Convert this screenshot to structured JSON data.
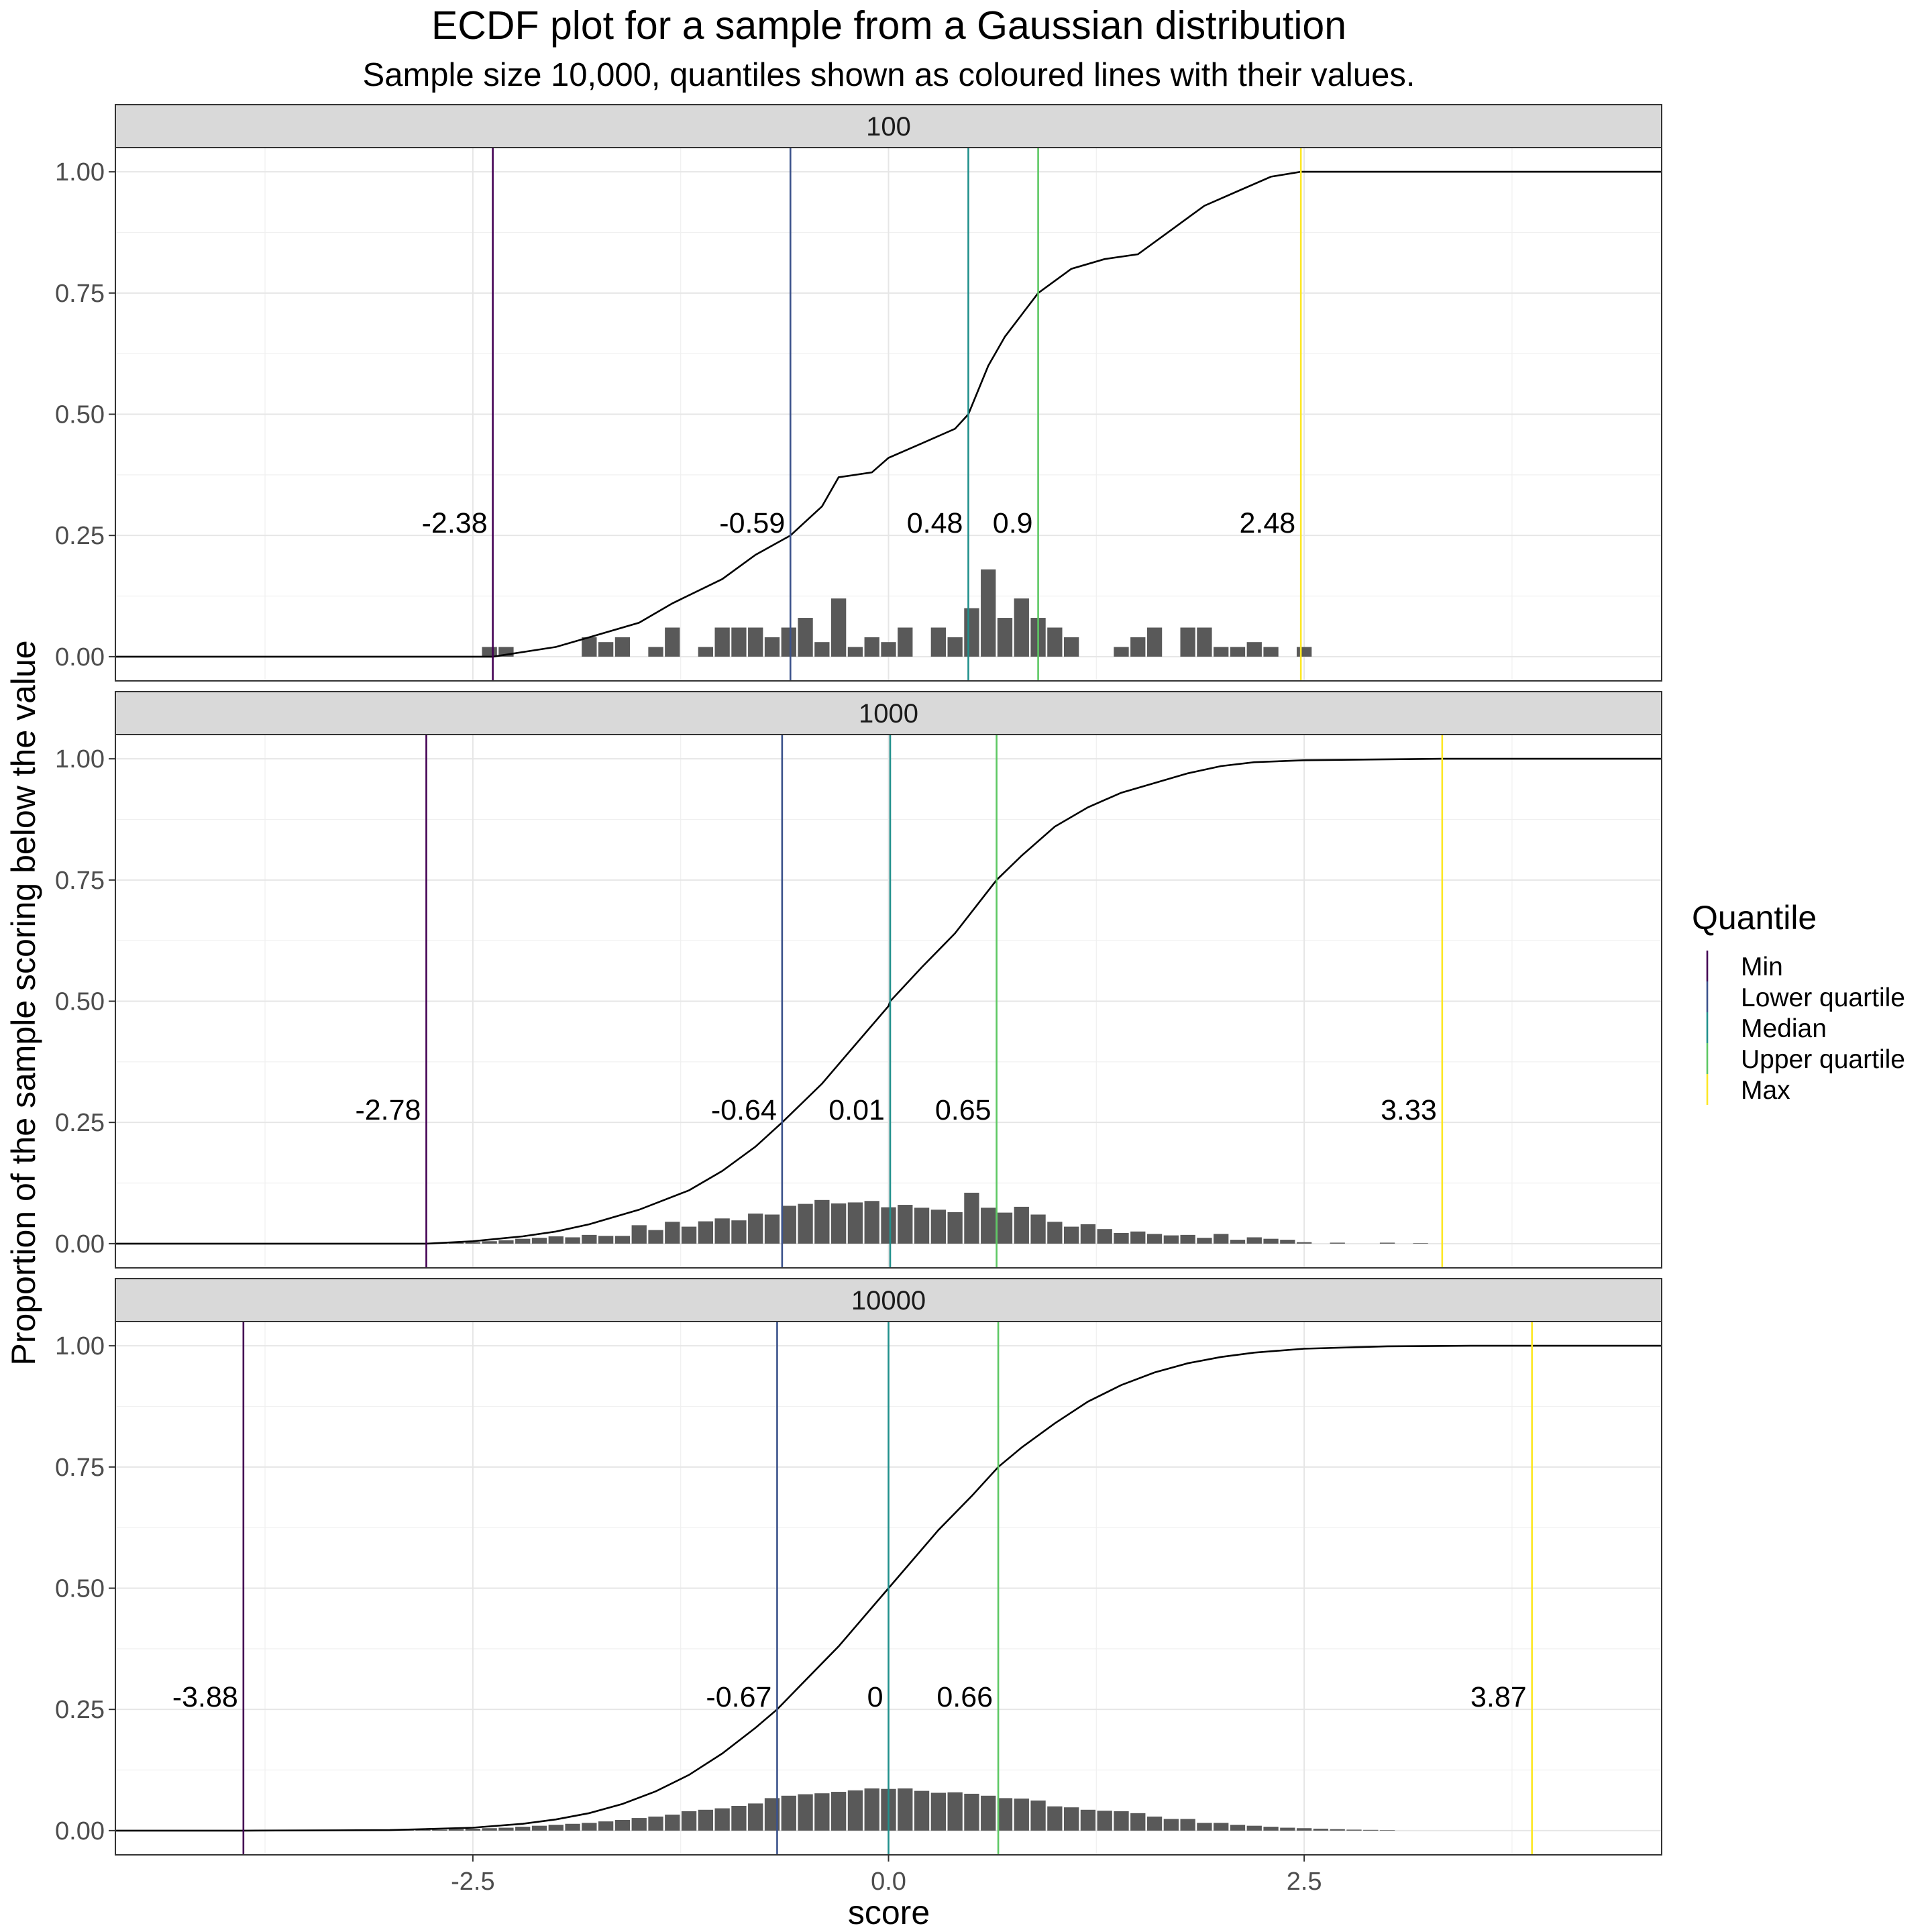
{
  "chart_data": {
    "type": "ecdf_faceted",
    "title": "ECDF plot for a sample from a Gaussian distribution",
    "subtitle": "Sample size 10,000, quantiles shown as coloured lines with their values.",
    "xlabel": "score",
    "ylabel": "Proportion of the sample scoring below the value",
    "xlim": [
      -4.65,
      4.65
    ],
    "ylim": [
      -0.05,
      1.05
    ],
    "x_ticks": [
      -2.5,
      0.0,
      2.5
    ],
    "x_tick_labels": [
      "-2.5",
      "0.0",
      "2.5"
    ],
    "y_ticks": [
      0,
      0.25,
      0.5,
      0.75,
      1
    ],
    "y_tick_labels": [
      "0.00",
      "0.25",
      "0.50",
      "0.75",
      "1.00"
    ],
    "grid": true,
    "histogram_bin_width": 0.2,
    "legend": {
      "title": "Quantile",
      "position": "right",
      "entries": [
        {
          "name": "Min",
          "color": "#440154"
        },
        {
          "name": "Lower quartile",
          "color": "#3B528B"
        },
        {
          "name": "Median",
          "color": "#21908C"
        },
        {
          "name": "Upper quartile",
          "color": "#5DC863"
        },
        {
          "name": "Max",
          "color": "#FDE725"
        }
      ]
    },
    "panels": [
      {
        "label": "100",
        "n": 100,
        "quantiles": [
          {
            "name": "Min",
            "value": -2.38,
            "label": "-2.38"
          },
          {
            "name": "Lower quartile",
            "value": -0.59,
            "label": "-0.59"
          },
          {
            "name": "Median",
            "value": 0.48,
            "label": "0.48"
          },
          {
            "name": "Upper quartile",
            "value": 0.9,
            "label": "0.9"
          },
          {
            "name": "Max",
            "value": 2.48,
            "label": "2.48"
          }
        ],
        "histogram": {
          "bin_centers": [
            -2.4,
            -2.3,
            -1.8,
            -1.7,
            -1.6,
            -1.4,
            -1.3,
            -1.1,
            -1.0,
            -0.9,
            -0.8,
            -0.7,
            -0.6,
            -0.5,
            -0.4,
            -0.3,
            -0.2,
            -0.1,
            0.0,
            0.1,
            0.3,
            0.4,
            0.5,
            0.6,
            0.7,
            0.8,
            0.9,
            1.0,
            1.1,
            1.4,
            1.5,
            1.6,
            1.8,
            1.9,
            2.0,
            2.1,
            2.2,
            2.3,
            2.5
          ],
          "proportions": [
            0.02,
            0.02,
            0.04,
            0.03,
            0.04,
            0.02,
            0.06,
            0.02,
            0.06,
            0.06,
            0.06,
            0.04,
            0.06,
            0.08,
            0.03,
            0.12,
            0.02,
            0.04,
            0.03,
            0.06,
            0.06,
            0.04,
            0.1,
            0.18,
            0.08,
            0.12,
            0.08,
            0.06,
            0.04,
            0.02,
            0.04,
            0.06,
            0.06,
            0.06,
            0.02,
            0.02,
            0.03,
            0.02,
            0.02
          ]
        },
        "ecdf": {
          "x": [
            -4.65,
            -2.38,
            -2.0,
            -1.8,
            -1.5,
            -1.3,
            -1.0,
            -0.8,
            -0.59,
            -0.4,
            -0.3,
            -0.1,
            0.0,
            0.2,
            0.4,
            0.48,
            0.6,
            0.7,
            0.9,
            1.1,
            1.3,
            1.5,
            1.7,
            1.9,
            2.1,
            2.3,
            2.48,
            4.65
          ],
          "y": [
            0,
            0,
            0.02,
            0.04,
            0.07,
            0.11,
            0.16,
            0.21,
            0.25,
            0.31,
            0.37,
            0.38,
            0.41,
            0.44,
            0.47,
            0.5,
            0.6,
            0.66,
            0.75,
            0.8,
            0.82,
            0.83,
            0.88,
            0.93,
            0.96,
            0.99,
            1.0,
            1.0
          ]
        }
      },
      {
        "label": "1000",
        "n": 1000,
        "quantiles": [
          {
            "name": "Min",
            "value": -2.78,
            "label": "-2.78"
          },
          {
            "name": "Lower quartile",
            "value": -0.64,
            "label": "-0.64"
          },
          {
            "name": "Median",
            "value": 0.01,
            "label": "0.01"
          },
          {
            "name": "Upper quartile",
            "value": 0.65,
            "label": "0.65"
          },
          {
            "name": "Max",
            "value": 3.33,
            "label": "3.33"
          }
        ],
        "histogram": {
          "bin_centers": [
            -2.7,
            -2.6,
            -2.5,
            -2.4,
            -2.3,
            -2.2,
            -2.1,
            -2.0,
            -1.9,
            -1.8,
            -1.7,
            -1.6,
            -1.5,
            -1.4,
            -1.3,
            -1.2,
            -1.1,
            -1.0,
            -0.9,
            -0.8,
            -0.7,
            -0.6,
            -0.5,
            -0.4,
            -0.3,
            -0.2,
            -0.1,
            0.0,
            0.1,
            0.2,
            0.3,
            0.4,
            0.5,
            0.6,
            0.7,
            0.8,
            0.9,
            1.0,
            1.1,
            1.2,
            1.3,
            1.4,
            1.5,
            1.6,
            1.7,
            1.8,
            1.9,
            2.0,
            2.1,
            2.2,
            2.3,
            2.4,
            2.5,
            2.7,
            3.0,
            3.2
          ],
          "proportions": [
            0.001,
            0.002,
            0.003,
            0.005,
            0.007,
            0.01,
            0.012,
            0.015,
            0.013,
            0.018,
            0.016,
            0.016,
            0.038,
            0.028,
            0.045,
            0.035,
            0.046,
            0.052,
            0.048,
            0.062,
            0.06,
            0.078,
            0.082,
            0.09,
            0.083,
            0.085,
            0.088,
            0.075,
            0.08,
            0.074,
            0.07,
            0.065,
            0.105,
            0.074,
            0.064,
            0.076,
            0.06,
            0.045,
            0.035,
            0.04,
            0.03,
            0.022,
            0.025,
            0.02,
            0.017,
            0.018,
            0.012,
            0.02,
            0.008,
            0.013,
            0.01,
            0.008,
            0.003,
            0.002,
            0.002,
            0.001
          ]
        },
        "ecdf": {
          "x": [
            -4.65,
            -2.78,
            -2.5,
            -2.2,
            -2.0,
            -1.8,
            -1.5,
            -1.2,
            -1.0,
            -0.8,
            -0.64,
            -0.4,
            -0.2,
            0.0,
            0.01,
            0.2,
            0.4,
            0.65,
            0.8,
            1.0,
            1.2,
            1.4,
            1.6,
            1.8,
            2.0,
            2.2,
            2.5,
            3.0,
            3.33,
            4.65
          ],
          "y": [
            0,
            0,
            0.005,
            0.015,
            0.025,
            0.04,
            0.07,
            0.11,
            0.15,
            0.2,
            0.25,
            0.33,
            0.41,
            0.49,
            0.5,
            0.57,
            0.64,
            0.75,
            0.8,
            0.86,
            0.9,
            0.93,
            0.95,
            0.97,
            0.985,
            0.993,
            0.997,
            0.999,
            1.0,
            1.0
          ]
        }
      },
      {
        "label": "10000",
        "n": 10000,
        "quantiles": [
          {
            "name": "Min",
            "value": -3.88,
            "label": "-3.88"
          },
          {
            "name": "Lower quartile",
            "value": -0.67,
            "label": "-0.67"
          },
          {
            "name": "Median",
            "value": 0.0,
            "label": "0"
          },
          {
            "name": "Upper quartile",
            "value": 0.66,
            "label": "0.66"
          },
          {
            "name": "Max",
            "value": 3.87,
            "label": "3.87"
          }
        ],
        "histogram": {
          "bin_centers": [
            -3.1,
            -3.0,
            -2.9,
            -2.8,
            -2.7,
            -2.6,
            -2.5,
            -2.4,
            -2.3,
            -2.2,
            -2.1,
            -2.0,
            -1.9,
            -1.8,
            -1.7,
            -1.6,
            -1.5,
            -1.4,
            -1.3,
            -1.2,
            -1.1,
            -1.0,
            -0.9,
            -0.8,
            -0.7,
            -0.6,
            -0.5,
            -0.4,
            -0.3,
            -0.2,
            -0.1,
            0.0,
            0.1,
            0.2,
            0.3,
            0.4,
            0.5,
            0.6,
            0.7,
            0.8,
            0.9,
            1.0,
            1.1,
            1.2,
            1.3,
            1.4,
            1.5,
            1.6,
            1.7,
            1.8,
            1.9,
            2.0,
            2.1,
            2.2,
            2.3,
            2.4,
            2.5,
            2.6,
            2.7,
            2.8,
            2.9,
            3.0
          ],
          "proportions": [
            0.0005,
            0.0008,
            0.001,
            0.0015,
            0.002,
            0.003,
            0.004,
            0.005,
            0.006,
            0.008,
            0.01,
            0.012,
            0.014,
            0.016,
            0.019,
            0.022,
            0.026,
            0.029,
            0.033,
            0.04,
            0.043,
            0.046,
            0.051,
            0.056,
            0.067,
            0.072,
            0.075,
            0.077,
            0.08,
            0.083,
            0.087,
            0.086,
            0.087,
            0.082,
            0.078,
            0.079,
            0.076,
            0.072,
            0.067,
            0.066,
            0.062,
            0.05,
            0.048,
            0.043,
            0.041,
            0.04,
            0.036,
            0.029,
            0.024,
            0.024,
            0.016,
            0.016,
            0.012,
            0.01,
            0.008,
            0.006,
            0.005,
            0.004,
            0.003,
            0.002,
            0.0015,
            0.001
          ]
        },
        "ecdf": {
          "x": [
            -4.65,
            -3.88,
            -3.0,
            -2.5,
            -2.2,
            -2.0,
            -1.8,
            -1.6,
            -1.4,
            -1.2,
            -1.0,
            -0.8,
            -0.67,
            -0.5,
            -0.3,
            -0.1,
            0.0,
            0.1,
            0.3,
            0.5,
            0.66,
            0.8,
            1.0,
            1.2,
            1.4,
            1.6,
            1.8,
            2.0,
            2.2,
            2.5,
            3.0,
            3.5,
            3.87,
            4.65
          ],
          "y": [
            0,
            0,
            0.001,
            0.006,
            0.014,
            0.023,
            0.036,
            0.055,
            0.081,
            0.115,
            0.159,
            0.212,
            0.25,
            0.31,
            0.38,
            0.46,
            0.5,
            0.54,
            0.62,
            0.69,
            0.75,
            0.79,
            0.84,
            0.885,
            0.919,
            0.945,
            0.964,
            0.977,
            0.986,
            0.994,
            0.999,
            1.0,
            1.0,
            1.0
          ]
        }
      }
    ]
  }
}
